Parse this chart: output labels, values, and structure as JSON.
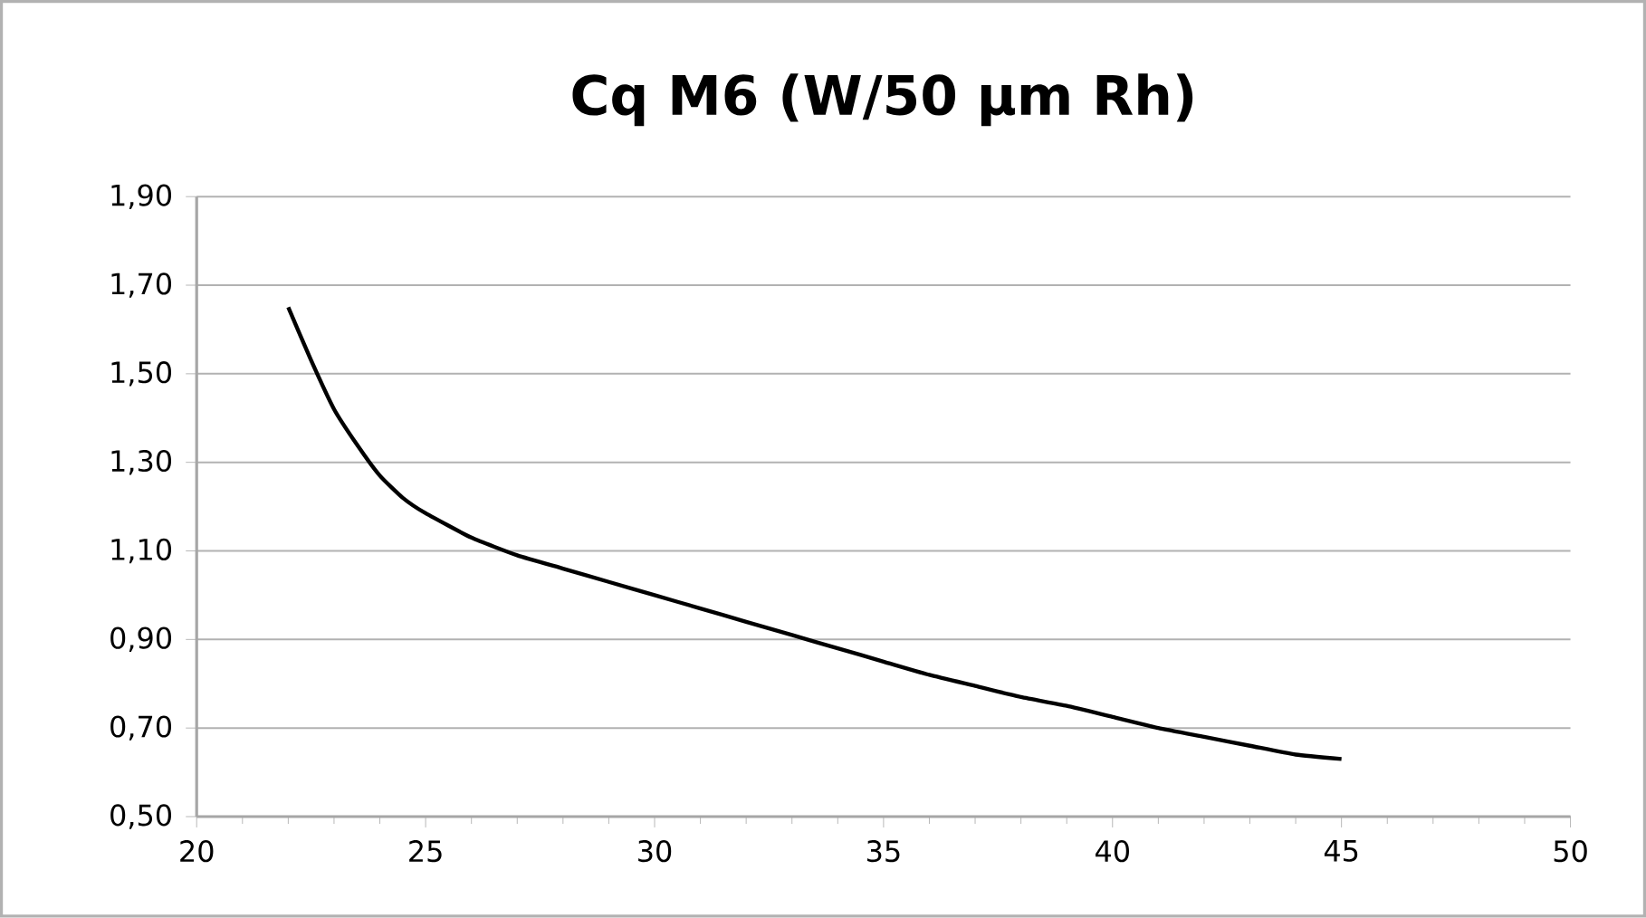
{
  "chart_data": {
    "type": "line",
    "title": "Cq M6 (W/50 µm Rh)",
    "x": [
      22,
      22.5,
      23,
      23.5,
      24,
      24.5,
      25,
      26,
      27,
      28,
      29,
      30,
      31,
      32,
      33,
      34,
      35,
      36,
      37,
      38,
      39,
      40,
      41,
      42,
      43,
      44,
      45
    ],
    "series": [
      {
        "color": "#000000",
        "values": [
          1.65,
          1.53,
          1.42,
          1.34,
          1.27,
          1.22,
          1.185,
          1.13,
          1.09,
          1.06,
          1.03,
          1.0,
          0.97,
          0.94,
          0.91,
          0.88,
          0.85,
          0.82,
          0.795,
          0.77,
          0.75,
          0.725,
          0.7,
          0.68,
          0.66,
          0.64,
          0.63
        ]
      }
    ],
    "xlim": [
      20,
      50
    ],
    "xticks": [
      20,
      25,
      30,
      35,
      40,
      45,
      50
    ],
    "ylim": [
      0.5,
      1.9
    ],
    "yticks": [
      {
        "value": 0.5,
        "label": "0,50"
      },
      {
        "value": 0.7,
        "label": "0,70"
      },
      {
        "value": 0.9,
        "label": "0,90"
      },
      {
        "value": 1.1,
        "label": "1,10"
      },
      {
        "value": 1.3,
        "label": "1,30"
      },
      {
        "value": 1.5,
        "label": "1,50"
      },
      {
        "value": 1.7,
        "label": "1,70"
      },
      {
        "value": 1.9,
        "label": "1,90"
      }
    ],
    "grid": "y",
    "marker": "none",
    "line_style": "solid"
  }
}
